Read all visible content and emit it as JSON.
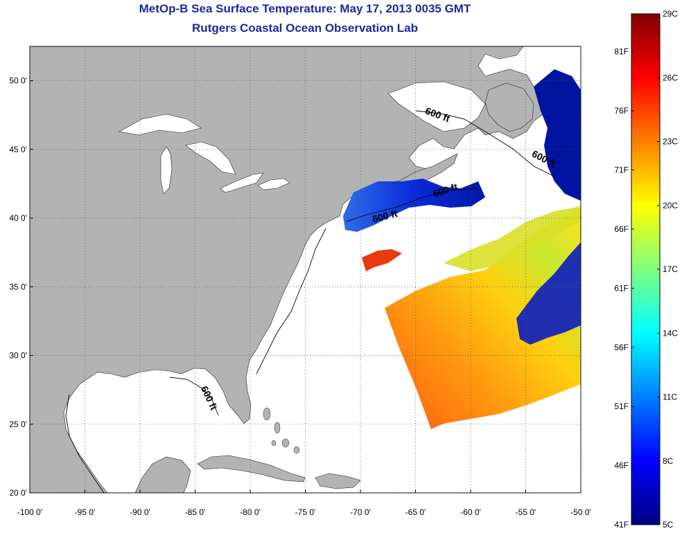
{
  "title": "MetOp-B Sea Surface Temperature:  May 17, 2013 0035 GMT",
  "subtitle": "Rutgers Coastal Ocean Observation Lab",
  "map": {
    "lon_range": [
      -100,
      -50
    ],
    "lat_range": [
      20,
      52.5
    ],
    "x_ticks": [
      {
        "value": -100,
        "label": "-100 0'"
      },
      {
        "value": -95,
        "label": "-95 0'"
      },
      {
        "value": -90,
        "label": "-90 0'"
      },
      {
        "value": -85,
        "label": "-85 0'"
      },
      {
        "value": -80,
        "label": "-80 0'"
      },
      {
        "value": -75,
        "label": "-75 0'"
      },
      {
        "value": -70,
        "label": "-70 0'"
      },
      {
        "value": -65,
        "label": "-65 0'"
      },
      {
        "value": -60,
        "label": "-60 0'"
      },
      {
        "value": -55,
        "label": "-55 0'"
      },
      {
        "value": -50,
        "label": "-50 0'"
      }
    ],
    "y_ticks": [
      {
        "value": 50,
        "label": "50 0'"
      },
      {
        "value": 45,
        "label": "45 0'"
      },
      {
        "value": 40,
        "label": "40 0'"
      },
      {
        "value": 35,
        "label": "35 0'"
      },
      {
        "value": 30,
        "label": "30 0'"
      },
      {
        "value": 25,
        "label": "25 0'"
      },
      {
        "value": 20,
        "label": "20 0'"
      }
    ],
    "contour_labels": [
      {
        "text": "600 ft",
        "lon": -63.1,
        "lat": 47.3,
        "rotate": 20
      },
      {
        "text": "600 ft",
        "lon": -53.5,
        "lat": 44.1,
        "rotate": 28
      },
      {
        "text": "600 ft",
        "lon": -62.2,
        "lat": 41.8,
        "rotate": -18
      },
      {
        "text": "600 ft",
        "lon": -67.7,
        "lat": 39.9,
        "rotate": -14
      },
      {
        "text": "600 ft",
        "lon": -84.0,
        "lat": 26.8,
        "rotate": 65
      }
    ],
    "colors": {
      "land": "#b3b3b3",
      "ocean": "#ffffff",
      "grid": "#555555"
    }
  },
  "colorbar": {
    "celsius": [
      {
        "value": 29,
        "label": "29C"
      },
      {
        "value": 26,
        "label": "26C"
      },
      {
        "value": 23,
        "label": "23C"
      },
      {
        "value": 20,
        "label": "20C"
      },
      {
        "value": 17,
        "label": "17C"
      },
      {
        "value": 14,
        "label": "14C"
      },
      {
        "value": 11,
        "label": "11C"
      },
      {
        "value": 8,
        "label": "8C"
      },
      {
        "value": 5,
        "label": "5C"
      }
    ],
    "fahrenheit": [
      {
        "value": 81,
        "label": "81F"
      },
      {
        "value": 76,
        "label": "76F"
      },
      {
        "value": 71,
        "label": "71F"
      },
      {
        "value": 66,
        "label": "66F"
      },
      {
        "value": 61,
        "label": "61F"
      },
      {
        "value": 56,
        "label": "56F"
      },
      {
        "value": 51,
        "label": "51F"
      },
      {
        "value": 46,
        "label": "46F"
      },
      {
        "value": 41,
        "label": "41F"
      }
    ],
    "range_c": [
      5,
      29
    ],
    "stops": [
      "#00007f",
      "#0000ff",
      "#007fff",
      "#00ffff",
      "#7fff7f",
      "#ffff00",
      "#ff7f00",
      "#ff0000",
      "#7f0000"
    ]
  }
}
